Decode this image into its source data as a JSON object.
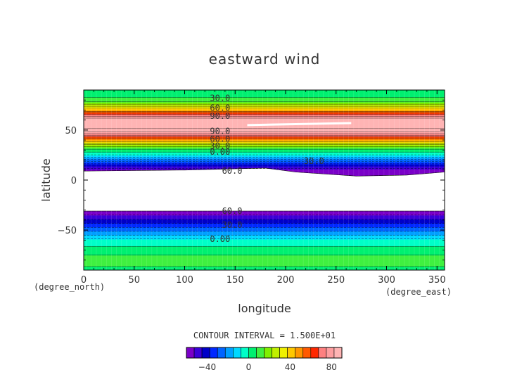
{
  "chart_data": {
    "type": "heatmap",
    "title": "eastward wind",
    "xlabel": "longitude",
    "ylabel": "latitude",
    "x_unit": "(degree_east)",
    "y_unit": "(degree_north)",
    "xlim": [
      0,
      357.5
    ],
    "ylim": [
      -90,
      90
    ],
    "x_ticks": [
      0,
      50,
      100,
      150,
      200,
      250,
      300,
      350
    ],
    "y_ticks": [
      -50,
      0,
      50
    ],
    "x_tick_labels": [
      "0",
      "50",
      "100",
      "150",
      "200",
      "250",
      "300",
      "350"
    ],
    "y_tick_labels": [
      "−50",
      "0",
      "50"
    ],
    "contour_interval_text": "CONTOUR INTERVAL = 1.500E+01",
    "contour_interval": 15,
    "colorbar": {
      "levels": [
        -60,
        -52.5,
        -45,
        -37.5,
        -30,
        -22.5,
        -15,
        -7.5,
        0,
        7.5,
        15,
        22.5,
        30,
        37.5,
        45,
        52.5,
        60,
        67.5,
        75,
        82.5,
        90
      ],
      "colors": [
        "#7a00c8",
        "#3a00d8",
        "#0000c8",
        "#0028ff",
        "#0064ff",
        "#00a0ff",
        "#00d8ff",
        "#00ffc8",
        "#00f070",
        "#40f040",
        "#80f000",
        "#c0f000",
        "#f0f000",
        "#ffc800",
        "#ff9600",
        "#ff5a00",
        "#ff2800",
        "#ff8080",
        "#ff9ea0",
        "#ffb4b4"
      ],
      "tick_values": [
        -40,
        0,
        40,
        80
      ],
      "tick_labels": [
        "−40",
        "0",
        "40",
        "80"
      ]
    },
    "profile": [
      {
        "lat": -90,
        "u": 5
      },
      {
        "lat": -80,
        "u": 12
      },
      {
        "lat": -70,
        "u": 3
      },
      {
        "lat": -60,
        "u": -5
      },
      {
        "lat": -50,
        "u": -25
      },
      {
        "lat": -42,
        "u": -40
      },
      {
        "lat": -35,
        "u": -52
      },
      {
        "lat": -31,
        "u": -60
      },
      {
        "lat": 9,
        "u": -60
      },
      {
        "lat": 14,
        "u": -45
      },
      {
        "lat": 20,
        "u": -25
      },
      {
        "lat": 26,
        "u": -5
      },
      {
        "lat": 30,
        "u": 5
      },
      {
        "lat": 35,
        "u": 20
      },
      {
        "lat": 40,
        "u": 45
      },
      {
        "lat": 45,
        "u": 70
      },
      {
        "lat": 50,
        "u": 88
      },
      {
        "lat": 55,
        "u": 95
      },
      {
        "lat": 60,
        "u": 90
      },
      {
        "lat": 65,
        "u": 70
      },
      {
        "lat": 70,
        "u": 45
      },
      {
        "lat": 75,
        "u": 25
      },
      {
        "lat": 80,
        "u": 10
      },
      {
        "lat": 85,
        "u": 5
      },
      {
        "lat": 90,
        "u": 5
      }
    ],
    "north_gap_edge": [
      {
        "lon": 0,
        "lat": 9
      },
      {
        "lon": 100,
        "lat": 10
      },
      {
        "lon": 180,
        "lat": 12
      },
      {
        "lon": 210,
        "lat": 8
      },
      {
        "lon": 270,
        "lat": 4
      },
      {
        "lon": 320,
        "lat": 5
      },
      {
        "lon": 357.5,
        "lat": 8
      }
    ],
    "south_gap_edge": [
      {
        "lon": 0,
        "lat": -31
      },
      {
        "lon": 357.5,
        "lat": -31
      }
    ],
    "max_region": {
      "lon_start": 162,
      "lon_end": 265,
      "lat_start": 56,
      "lat_end": 58
    },
    "contour_labels": [
      {
        "text": "30.0",
        "lon": 125,
        "lat": 82
      },
      {
        "text": "60.0",
        "lon": 125,
        "lat": 72
      },
      {
        "text": "90.0",
        "lon": 125,
        "lat": 64
      },
      {
        "text": "90.0",
        "lon": 125,
        "lat": 49
      },
      {
        "text": "60.0",
        "lon": 125,
        "lat": 41
      },
      {
        "text": "30.0",
        "lon": 125,
        "lat": 34
      },
      {
        "text": "0.00",
        "lon": 125,
        "lat": 28
      },
      {
        "text": "30.0",
        "lon": 218,
        "lat": 19
      },
      {
        "text": "60.0",
        "lon": 137,
        "lat": 9
      },
      {
        "text": "60.0",
        "lon": 137,
        "lat": -31
      },
      {
        "text": "30.0",
        "lon": 137,
        "lat": -45
      },
      {
        "text": "0.00",
        "lon": 125,
        "lat": -59
      }
    ]
  }
}
